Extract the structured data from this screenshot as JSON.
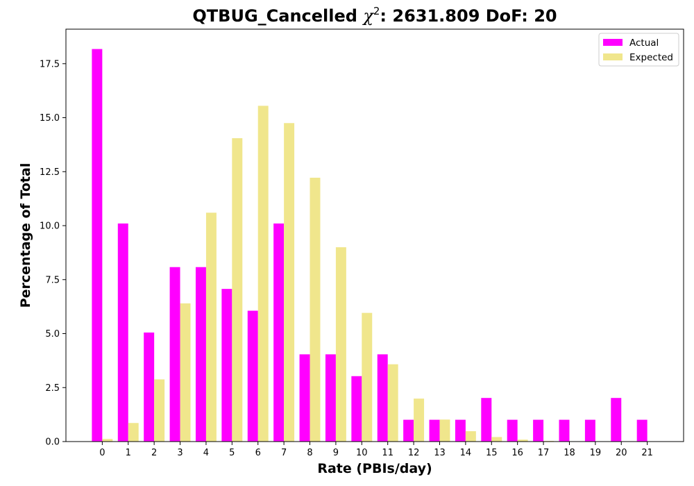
{
  "chart_data": {
    "type": "bar",
    "title_prefix": "QTBUG_Cancelled ",
    "title_symbol": "χ",
    "title_sup": "2",
    "title_suffix": ": 2631.809 DoF: 20",
    "xlabel": "Rate (PBIs/day)",
    "ylabel": "Percentage of Total",
    "categories": [
      "0",
      "1",
      "2",
      "3",
      "4",
      "5",
      "6",
      "7",
      "8",
      "9",
      "10",
      "11",
      "12",
      "13",
      "14",
      "15",
      "16",
      "17",
      "18",
      "19",
      "20",
      "21"
    ],
    "series": [
      {
        "name": "Actual",
        "color": "#ff00ff",
        "values": [
          18.18,
          10.1,
          5.05,
          8.08,
          8.08,
          7.07,
          6.06,
          10.1,
          4.04,
          4.04,
          3.03,
          4.04,
          1.01,
          1.01,
          1.01,
          2.02,
          1.01,
          1.01,
          1.01,
          1.01,
          2.02,
          1.01
        ]
      },
      {
        "name": "Expected",
        "color": "#f0e68c",
        "values": [
          0.12,
          0.86,
          2.88,
          6.4,
          10.6,
          14.05,
          15.55,
          14.75,
          12.22,
          9.0,
          5.96,
          3.58,
          1.99,
          1.02,
          0.48,
          0.21,
          0.09,
          0.03,
          0.01,
          0.0,
          0.0,
          0.0
        ]
      }
    ],
    "ylim": [
      0,
      19.1
    ],
    "yticks": [
      0.0,
      2.5,
      5.0,
      7.5,
      10.0,
      12.5,
      15.0,
      17.5
    ],
    "ytick_labels": [
      "0.0",
      "2.5",
      "5.0",
      "7.5",
      "10.0",
      "12.5",
      "15.0",
      "17.5"
    ],
    "xlim": [
      -1.4,
      22.4
    ],
    "grid": false,
    "legend_position": "top-right"
  }
}
